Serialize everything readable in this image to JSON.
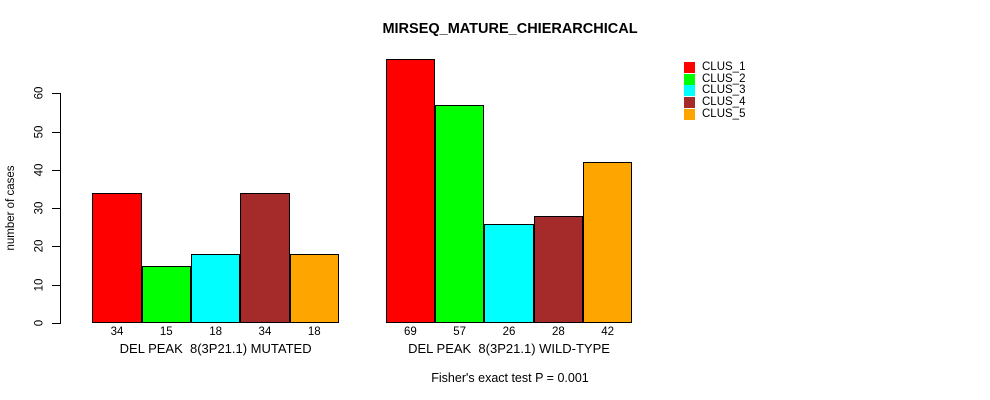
{
  "figure": {
    "title": "MIRSEQ_MATURE_CHIERARCHICAL",
    "footer": "Fisher's exact test P = 0.001"
  },
  "chart_data": {
    "type": "bar",
    "title": "MIRSEQ_MATURE_CHIERARCHICAL",
    "xlabel": "",
    "ylabel": "number of cases",
    "groups": [
      "DEL PEAK  8(3P21.1) MUTATED",
      "DEL PEAK  8(3P21.1) WILD-TYPE"
    ],
    "series": [
      {
        "name": "CLUS_1",
        "color": "#FF0000",
        "values": [
          34,
          69
        ]
      },
      {
        "name": "CLUS_2",
        "color": "#00FF00",
        "values": [
          15,
          57
        ]
      },
      {
        "name": "CLUS_3",
        "color": "#00FFFF",
        "values": [
          18,
          26
        ]
      },
      {
        "name": "CLUS_4",
        "color": "#A52A2A",
        "values": [
          34,
          28
        ]
      },
      {
        "name": "CLUS_5",
        "color": "#FFA500",
        "values": [
          18,
          42
        ]
      }
    ],
    "yticks": [
      0,
      10,
      20,
      30,
      40,
      50,
      60
    ],
    "ylim": [
      0,
      69
    ],
    "bar_value_labels_shown": true,
    "grid": false,
    "legend_position": "top-right",
    "legend_entries": [
      "CLUS_1",
      "CLUS_2",
      "CLUS_3",
      "CLUS_4",
      "CLUS_5"
    ],
    "annotation": "Fisher's exact test P = 0.001"
  }
}
